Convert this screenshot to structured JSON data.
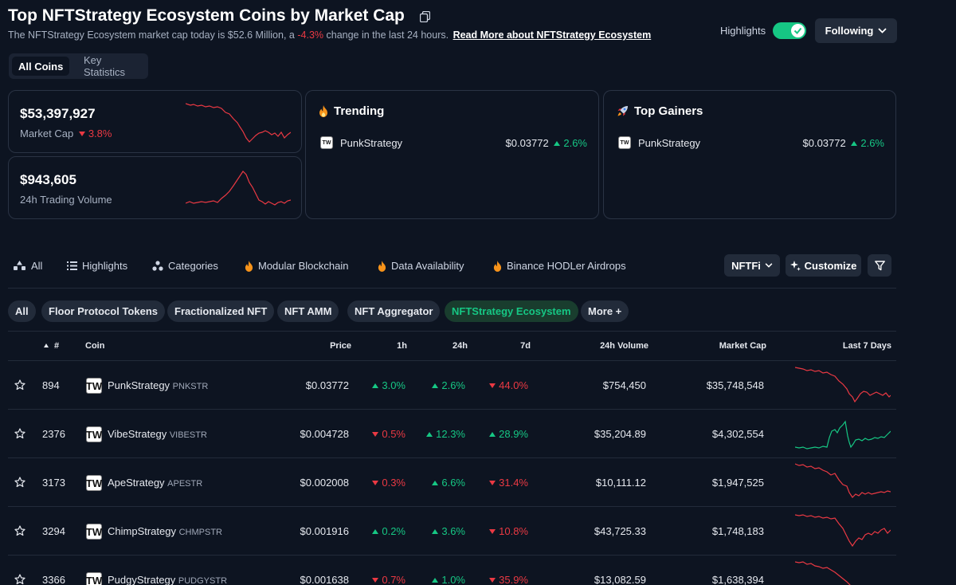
{
  "header": {
    "title": "Top NFTStrategy Ecosystem Coins by Market Cap",
    "subtitle_prefix": "The NFTStrategy Ecosystem market cap today is $52.6 Million, a",
    "subtitle_change": "-4.3%",
    "subtitle_suffix": "change in the last 24 hours.",
    "read_more": "Read More about NFTStrategy Ecosystem",
    "highlights_label": "Highlights",
    "following_label": "Following"
  },
  "view_tabs": [
    "All Coins",
    "Key Statistics"
  ],
  "stats": {
    "market_cap": {
      "value": "$53,397,927",
      "label": "Market Cap",
      "change": "3.8%"
    },
    "volume": {
      "value": "$943,605",
      "label": "24h Trading Volume"
    }
  },
  "trending": {
    "title": "Trending",
    "coin": "PunkStrategy",
    "price": "$0.03772",
    "change": "2.6%"
  },
  "top_gainers": {
    "title": "Top Gainers",
    "coin": "PunkStrategy",
    "price": "$0.03772",
    "change": "2.6%"
  },
  "category_nav": {
    "items": [
      "All",
      "Highlights",
      "Categories",
      "Modular Blockchain",
      "Data Availability",
      "Binance HODLer Airdrops"
    ],
    "nftfi_label": "NFTFi",
    "customize_label": "Customize"
  },
  "pills": [
    "All",
    "Floor Protocol Tokens",
    "Fractionalized NFT",
    "NFT AMM",
    "NFT Aggregator",
    "NFTStrategy Ecosystem",
    "More +"
  ],
  "table": {
    "headers": {
      "rank": "#",
      "coin": "Coin",
      "price": "Price",
      "h1": "1h",
      "h24": "24h",
      "d7": "7d",
      "volume": "24h Volume",
      "mcap": "Market Cap",
      "last7": "Last 7 Days"
    },
    "rows": [
      {
        "rank": "894",
        "name": "PunkStrategy",
        "symbol": "PNKSTR",
        "price": "$0.03772",
        "h1": "3.0%",
        "h24": "2.6%",
        "d7": "44.0%",
        "volume": "$754,450",
        "mcap": "$35,748,548"
      },
      {
        "rank": "2376",
        "name": "VibeStrategy",
        "symbol": "VIBESTR",
        "price": "$0.004728",
        "h1": "0.5%",
        "h24": "12.3%",
        "d7": "28.9%",
        "volume": "$35,204.89",
        "mcap": "$4,302,554"
      },
      {
        "rank": "3173",
        "name": "ApeStrategy",
        "symbol": "APESTR",
        "price": "$0.002008",
        "h1": "0.3%",
        "h24": "6.6%",
        "d7": "31.4%",
        "volume": "$10,111.12",
        "mcap": "$1,947,525"
      },
      {
        "rank": "3294",
        "name": "ChimpStrategy",
        "symbol": "CHMPSTR",
        "price": "$0.001916",
        "h1": "0.2%",
        "h24": "3.6%",
        "d7": "10.8%",
        "volume": "$43,725.33",
        "mcap": "$1,748,183"
      },
      {
        "rank": "3366",
        "name": "PudgyStrategy",
        "symbol": "PUDGYSTR",
        "price": "$0.001638",
        "h1": "0.7%",
        "h24": "1.0%",
        "d7": "35.9%",
        "volume": "$13,082.59",
        "mcap": "$1,638,394"
      }
    ]
  },
  "colors": {
    "up": "#16c784",
    "down": "#ea3943",
    "bg": "#0d1421"
  }
}
